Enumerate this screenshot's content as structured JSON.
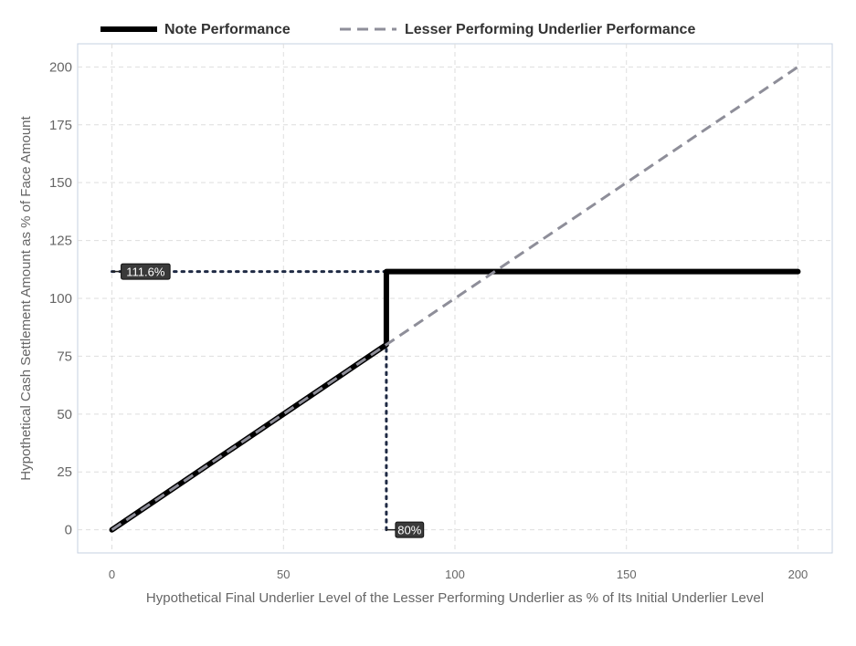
{
  "chart_data": {
    "type": "line",
    "title": "",
    "xlabel": "Hypothetical Final Underlier Level of the Lesser Performing Underlier as % of Its Initial Underlier Level",
    "ylabel": "Hypothetical Cash Settlement Amount as % of Face Amount",
    "xlim": [
      -10,
      210
    ],
    "ylim": [
      -10,
      210
    ],
    "x_ticks": [
      0,
      50,
      100,
      150,
      200
    ],
    "y_ticks": [
      0,
      25,
      50,
      75,
      100,
      125,
      150,
      175,
      200
    ],
    "grid": true,
    "legend_position": "top-left",
    "series": [
      {
        "name": "Note Performance",
        "style": "solid",
        "color": "#000000",
        "x": [
          0,
          80,
          80,
          200
        ],
        "y": [
          0,
          80,
          111.6,
          111.6
        ]
      },
      {
        "name": "Lesser Performing Underlier Performance",
        "style": "dashed",
        "color": "#8e8e99",
        "x": [
          0,
          200
        ],
        "y": [
          0,
          200
        ]
      }
    ],
    "reference_lines": [
      {
        "orientation": "horizontal",
        "style": "dotted",
        "color": "#1f2a44",
        "value": 111.6,
        "from": 0,
        "to": 80
      },
      {
        "orientation": "vertical",
        "style": "dotted",
        "color": "#1f2a44",
        "value": 80,
        "from": 0,
        "to": 111.6
      }
    ],
    "annotations": [
      {
        "text": "111.6%",
        "x": 0,
        "y": 111.6
      },
      {
        "text": "80%",
        "x": 80,
        "y": 0
      }
    ]
  }
}
